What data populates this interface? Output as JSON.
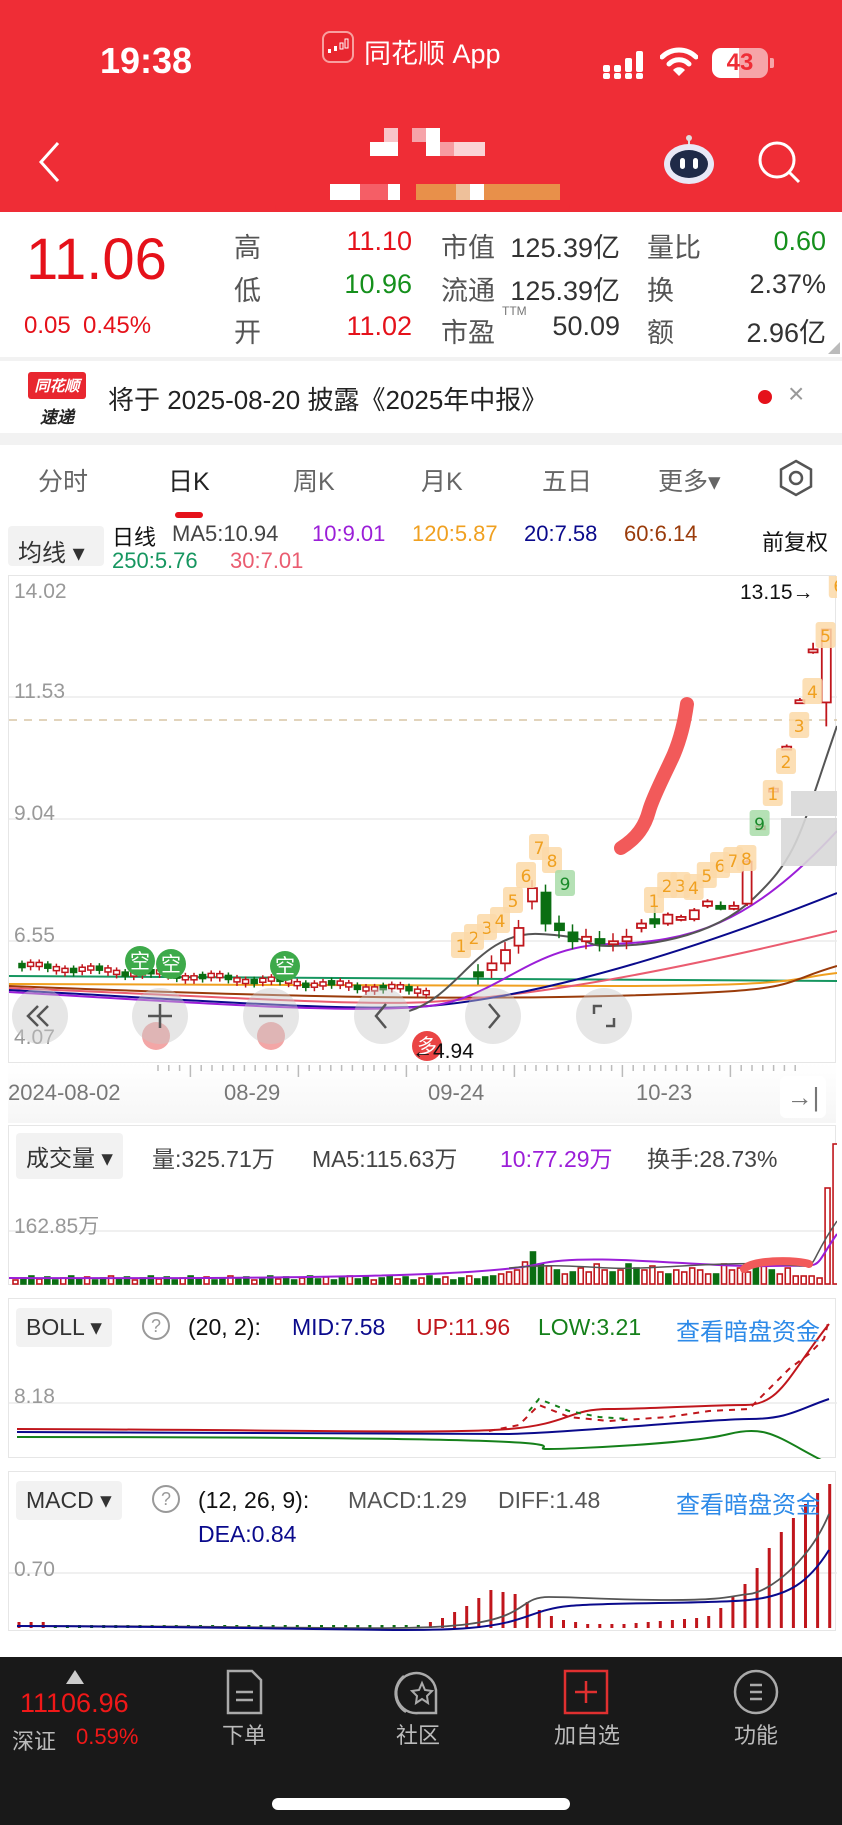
{
  "status_bar": {
    "time": "19:38",
    "app_name": "同花顺 App",
    "battery": "43"
  },
  "header": {
    "back_icon": "chevron-left-icon",
    "title": "[redacted]",
    "subtitle": "[redacted]",
    "assistant_icon": "robot-icon",
    "search_icon": "search-icon"
  },
  "quote": {
    "price": "11.06",
    "change": "0.05",
    "change_pct": "0.45%",
    "fields": [
      {
        "label": "高",
        "value": "11.10",
        "color": "red"
      },
      {
        "label": "低",
        "value": "10.96",
        "color": "green"
      },
      {
        "label": "开",
        "value": "11.02",
        "color": "red"
      },
      {
        "label": "市值",
        "value": "125.39亿"
      },
      {
        "label": "流通",
        "value": "125.39亿"
      },
      {
        "label": "市盈",
        "label_sup": "TTM",
        "value": "50.09"
      },
      {
        "label": "量比",
        "value": "0.60",
        "color": "green"
      },
      {
        "label": "换",
        "value": "2.37%"
      },
      {
        "label": "额",
        "value": "2.96亿"
      }
    ]
  },
  "news": {
    "logo_top": "同花顺",
    "logo_bottom": "速递",
    "text": "将于 2025-08-20 披露《2025年中报》",
    "close": "×"
  },
  "tabs": [
    {
      "label": "分时",
      "active": false
    },
    {
      "label": "日K",
      "active": true
    },
    {
      "label": "周K",
      "active": false
    },
    {
      "label": "月K",
      "active": false
    },
    {
      "label": "五日",
      "active": false
    },
    {
      "label": "更多▾",
      "active": false
    }
  ],
  "settings_icon": "hexagon-gear-icon",
  "ma_bar": {
    "dropdown": "均线 ▾",
    "period": "日线",
    "items": [
      {
        "label": "MA5:10.94",
        "color": "#444444"
      },
      {
        "label": "10:9.01",
        "color": "#9b1ed8"
      },
      {
        "label": "120:5.87",
        "color": "#f0a020"
      },
      {
        "label": "20:7.58",
        "color": "#0a0a8c"
      },
      {
        "label": "60:6.14",
        "color": "#9a3b0a"
      },
      {
        "label": "250:5.76",
        "color": "#169660"
      },
      {
        "label": "30:7.01",
        "color": "#ea5c70"
      }
    ],
    "adjust": "前复权"
  },
  "chart_data": [
    {
      "type": "candlestick",
      "title": "日K",
      "y_ticks": [
        "14.02",
        "11.53",
        "9.04",
        "6.55",
        "4.07"
      ],
      "ylim": [
        4.07,
        14.02
      ],
      "x_ticks": [
        "2024-08-02",
        "08-29",
        "09-24",
        "10-23"
      ],
      "annotations": {
        "max_label": "13.15→",
        "min_label": "←4.94",
        "dashed_level": 11.06,
        "td_counts_up": [
          "1",
          "2",
          "3",
          "4",
          "5",
          "6",
          "7",
          "8",
          "9"
        ],
        "td_counts_second": [
          "1",
          "2",
          "3",
          "4",
          "5",
          "6",
          "7",
          "8",
          "9",
          "1",
          "2",
          "3",
          "4",
          "5",
          "6"
        ],
        "signals": [
          "空",
          "空",
          "空",
          "多",
          "多",
          "多"
        ]
      },
      "ma": {
        "MA5": 10.94,
        "MA10": 9.01,
        "MA20": 7.58,
        "MA30": 7.01,
        "MA60": 6.14,
        "MA120": 5.87,
        "MA250": 5.76
      },
      "candles_recent": [
        {
          "o": 6.4,
          "c": 6.5,
          "h": 6.6,
          "l": 6.3
        },
        {
          "o": 6.6,
          "c": 6.5,
          "h": 6.9,
          "l": 6.4
        },
        {
          "o": 6.5,
          "c": 6.7,
          "h": 6.75,
          "l": 6.45
        },
        {
          "o": 6.6,
          "c": 6.65,
          "h": 6.7,
          "l": 6.55
        },
        {
          "o": 6.6,
          "c": 6.8,
          "h": 6.85,
          "l": 6.55
        },
        {
          "o": 6.9,
          "c": 7.0,
          "h": 7.05,
          "l": 6.85
        },
        {
          "o": 6.9,
          "c": 6.85,
          "h": 7.0,
          "l": 6.8
        },
        {
          "o": 6.85,
          "c": 6.9,
          "h": 7.0,
          "l": 6.8
        },
        {
          "o": 6.95,
          "c": 7.9,
          "h": 7.95,
          "l": 6.9
        },
        {
          "o": 8.7,
          "c": 8.7,
          "h": 8.75,
          "l": 8.65
        },
        {
          "o": 9.55,
          "c": 9.55,
          "h": 9.6,
          "l": 9.5
        },
        {
          "o": 10.5,
          "c": 10.5,
          "h": 10.55,
          "l": 10.45
        },
        {
          "o": 11.55,
          "c": 11.55,
          "h": 11.6,
          "l": 11.5
        },
        {
          "o": 12.7,
          "c": 12.7,
          "h": 12.85,
          "l": 12.6
        },
        {
          "o": 11.5,
          "c": 13.15,
          "h": 13.15,
          "l": 10.96
        }
      ]
    },
    {
      "type": "bar",
      "title": "成交量",
      "labels": {
        "vol": "量:325.71万",
        "ma5": "MA5:115.63万",
        "ma10": "10:77.29万",
        "turnover": "换手:28.73%"
      },
      "y_ticks": [
        "162.85万"
      ],
      "ylim": [
        0,
        325.71
      ]
    },
    {
      "type": "line",
      "title": "BOLL",
      "params": "(20, 2):",
      "series": [
        {
          "name": "MID",
          "value": 7.58,
          "color": "#0a0a8c"
        },
        {
          "name": "UP",
          "value": 11.96,
          "color": "#c0161c"
        },
        {
          "name": "LOW",
          "value": 3.21,
          "color": "#15801a"
        }
      ],
      "y_ticks": [
        "8.18"
      ]
    },
    {
      "type": "bar",
      "title": "MACD",
      "params": "(12, 26, 9):",
      "series": [
        {
          "name": "MACD",
          "value": 1.29
        },
        {
          "name": "DIFF",
          "value": 1.48
        },
        {
          "name": "DEA",
          "value": 0.84
        }
      ],
      "y_ticks": [
        "0.70"
      ]
    }
  ],
  "volume_panel": {
    "dropdown": "成交量 ▾",
    "vol": "量:325.71万",
    "ma5": "MA5:115.63万",
    "ma10": "10:77.29万",
    "turnover": "换手:28.73%",
    "y_tick": "162.85万"
  },
  "boll_panel": {
    "dropdown": "BOLL ▾",
    "help": "?",
    "params": "(20, 2):",
    "mid": "MID:7.58",
    "up": "UP:11.96",
    "low": "LOW:3.21",
    "link": "查看暗盘资金",
    "y_tick": "8.18"
  },
  "macd_panel": {
    "dropdown": "MACD ▾",
    "help": "?",
    "params": "(12, 26, 9):",
    "macd": "MACD:1.29",
    "diff": "DIFF:1.48",
    "dea": "DEA:0.84",
    "link": "查看暗盘资金",
    "y_tick": "0.70"
  },
  "price_axis": {
    "t0": "14.02",
    "t1": "11.53",
    "t2": "9.04",
    "t3": "6.55",
    "t4": "4.07",
    "max": "13.15→",
    "min": "←4.94"
  },
  "date_axis": {
    "d0": "2024-08-02",
    "d1": "08-29",
    "d2": "09-24",
    "d3": "10-23",
    "go_end": "→|"
  },
  "chart_controls": {
    "rewind": "«",
    "zoom_in": "+",
    "zoom_out": "−",
    "prev": "‹",
    "next": "›",
    "fullscreen": "⌞⌟"
  },
  "bottom_bar": {
    "index_value": "11106.96",
    "index_name": "深证",
    "index_pct": "0.59%",
    "items": [
      {
        "label": "下单",
        "icon": "document-icon"
      },
      {
        "label": "社区",
        "icon": "community-star-icon"
      },
      {
        "label": "加自选",
        "icon": "add-watchlist-icon"
      },
      {
        "label": "功能",
        "icon": "menu-circle-icon"
      }
    ]
  }
}
